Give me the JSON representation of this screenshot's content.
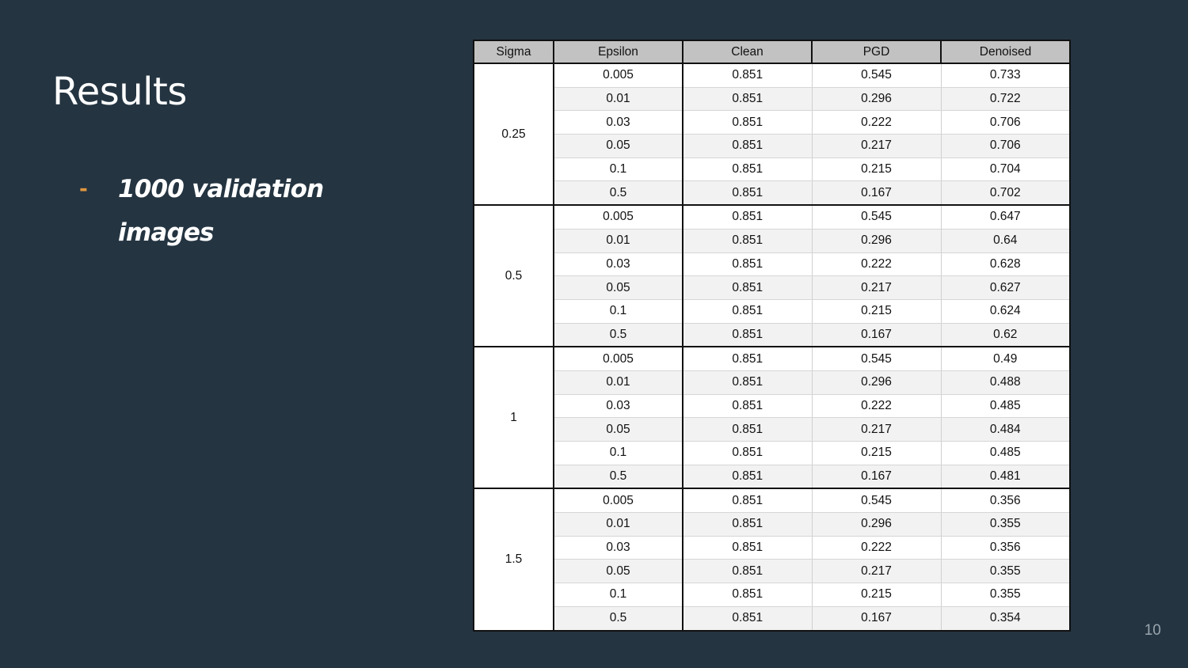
{
  "slide": {
    "title": "Results",
    "bullet": "1000 validation images",
    "bullet_marker": "-",
    "page_number": "10"
  },
  "table": {
    "headers": [
      "Sigma",
      "Epsilon",
      "Clean",
      "PGD",
      "Denoised"
    ],
    "groups": [
      {
        "sigma": "0.25",
        "rows": [
          [
            "0.005",
            "0.851",
            "0.545",
            "0.733"
          ],
          [
            "0.01",
            "0.851",
            "0.296",
            "0.722"
          ],
          [
            "0.03",
            "0.851",
            "0.222",
            "0.706"
          ],
          [
            "0.05",
            "0.851",
            "0.217",
            "0.706"
          ],
          [
            "0.1",
            "0.851",
            "0.215",
            "0.704"
          ],
          [
            "0.5",
            "0.851",
            "0.167",
            "0.702"
          ]
        ]
      },
      {
        "sigma": "0.5",
        "rows": [
          [
            "0.005",
            "0.851",
            "0.545",
            "0.647"
          ],
          [
            "0.01",
            "0.851",
            "0.296",
            "0.64"
          ],
          [
            "0.03",
            "0.851",
            "0.222",
            "0.628"
          ],
          [
            "0.05",
            "0.851",
            "0.217",
            "0.627"
          ],
          [
            "0.1",
            "0.851",
            "0.215",
            "0.624"
          ],
          [
            "0.5",
            "0.851",
            "0.167",
            "0.62"
          ]
        ]
      },
      {
        "sigma": "1",
        "rows": [
          [
            "0.005",
            "0.851",
            "0.545",
            "0.49"
          ],
          [
            "0.01",
            "0.851",
            "0.296",
            "0.488"
          ],
          [
            "0.03",
            "0.851",
            "0.222",
            "0.485"
          ],
          [
            "0.05",
            "0.851",
            "0.217",
            "0.484"
          ],
          [
            "0.1",
            "0.851",
            "0.215",
            "0.485"
          ],
          [
            "0.5",
            "0.851",
            "0.167",
            "0.481"
          ]
        ]
      },
      {
        "sigma": "1.5",
        "rows": [
          [
            "0.005",
            "0.851",
            "0.545",
            "0.356"
          ],
          [
            "0.01",
            "0.851",
            "0.296",
            "0.355"
          ],
          [
            "0.03",
            "0.851",
            "0.222",
            "0.356"
          ],
          [
            "0.05",
            "0.851",
            "0.217",
            "0.355"
          ],
          [
            "0.1",
            "0.851",
            "0.215",
            "0.355"
          ],
          [
            "0.5",
            "0.851",
            "0.167",
            "0.354"
          ]
        ]
      }
    ]
  },
  "colors": {
    "background": "#243441",
    "bullet_marker": "#e0963f",
    "header_fill": "#c2c2c2"
  }
}
